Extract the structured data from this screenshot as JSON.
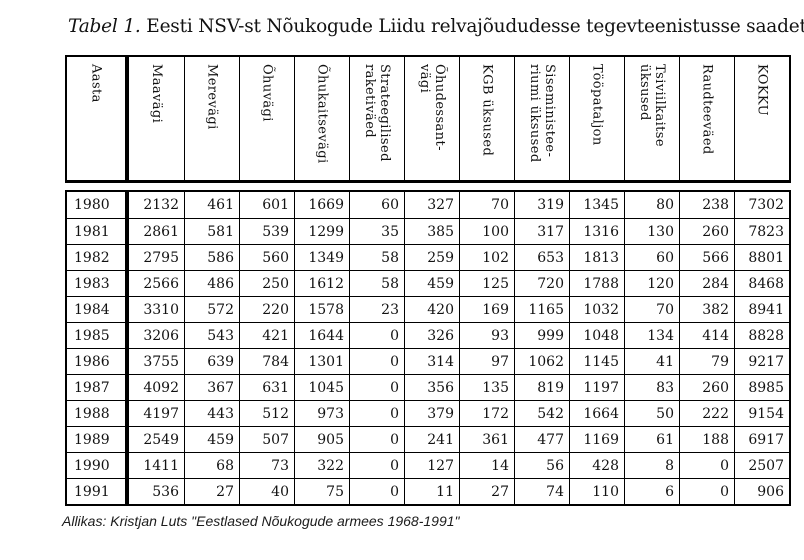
{
  "title": {
    "prefix": "Tabel 1.",
    "rest": " Eesti NSV-st Nõukogude Liidu relvajõududesse tegevteenistusse saadetute arv"
  },
  "chart_data": {
    "type": "table",
    "title": "Tabel 1. Eesti NSV-st Nõukogude Liidu relvajõududesse tegevteenistusse saadetute arv",
    "headers": [
      "Aasta",
      "Maavägi",
      "Merevägi",
      "Õhuvägi",
      "Õhukaitsevägi",
      "Strateegilised\nraketiväed",
      "Õhudessant-\nvägi",
      "KGB üksused",
      "Siseministee-\nriumi üksused",
      "Tööpataljon",
      "Tsiviilkaitse\nüksused",
      "Raudteeväed",
      "KOKKU"
    ],
    "rows": [
      {
        "year": "1980",
        "values": [
          2132,
          461,
          601,
          1669,
          60,
          327,
          70,
          319,
          1345,
          80,
          238,
          7302
        ]
      },
      {
        "year": "1981",
        "values": [
          2861,
          581,
          539,
          1299,
          35,
          385,
          100,
          317,
          1316,
          130,
          260,
          7823
        ]
      },
      {
        "year": "1982",
        "values": [
          2795,
          586,
          560,
          1349,
          58,
          259,
          102,
          653,
          1813,
          60,
          566,
          8801
        ]
      },
      {
        "year": "1983",
        "values": [
          2566,
          486,
          250,
          1612,
          58,
          459,
          125,
          720,
          1788,
          120,
          284,
          8468
        ]
      },
      {
        "year": "1984",
        "values": [
          3310,
          572,
          220,
          1578,
          23,
          420,
          169,
          1165,
          1032,
          70,
          382,
          8941
        ]
      },
      {
        "year": "1985",
        "values": [
          3206,
          543,
          421,
          1644,
          0,
          326,
          93,
          999,
          1048,
          134,
          414,
          8828
        ]
      },
      {
        "year": "1986",
        "values": [
          3755,
          639,
          784,
          1301,
          0,
          314,
          97,
          1062,
          1145,
          41,
          79,
          9217
        ]
      },
      {
        "year": "1987",
        "values": [
          4092,
          367,
          631,
          1045,
          0,
          356,
          135,
          819,
          1197,
          83,
          260,
          8985
        ]
      },
      {
        "year": "1988",
        "values": [
          4197,
          443,
          512,
          973,
          0,
          379,
          172,
          542,
          1664,
          50,
          222,
          9154
        ]
      },
      {
        "year": "1989",
        "values": [
          2549,
          459,
          507,
          905,
          0,
          241,
          361,
          477,
          1169,
          61,
          188,
          6917
        ]
      },
      {
        "year": "1990",
        "values": [
          1411,
          68,
          73,
          322,
          0,
          127,
          14,
          56,
          428,
          8,
          0,
          2507
        ]
      },
      {
        "year": "1991",
        "values": [
          536,
          27,
          40,
          75,
          0,
          11,
          27,
          74,
          110,
          6,
          0,
          906
        ]
      }
    ]
  },
  "source": "Allikas: Kristjan Luts \"Eestlased Nõukogude armees 1968-1991\""
}
